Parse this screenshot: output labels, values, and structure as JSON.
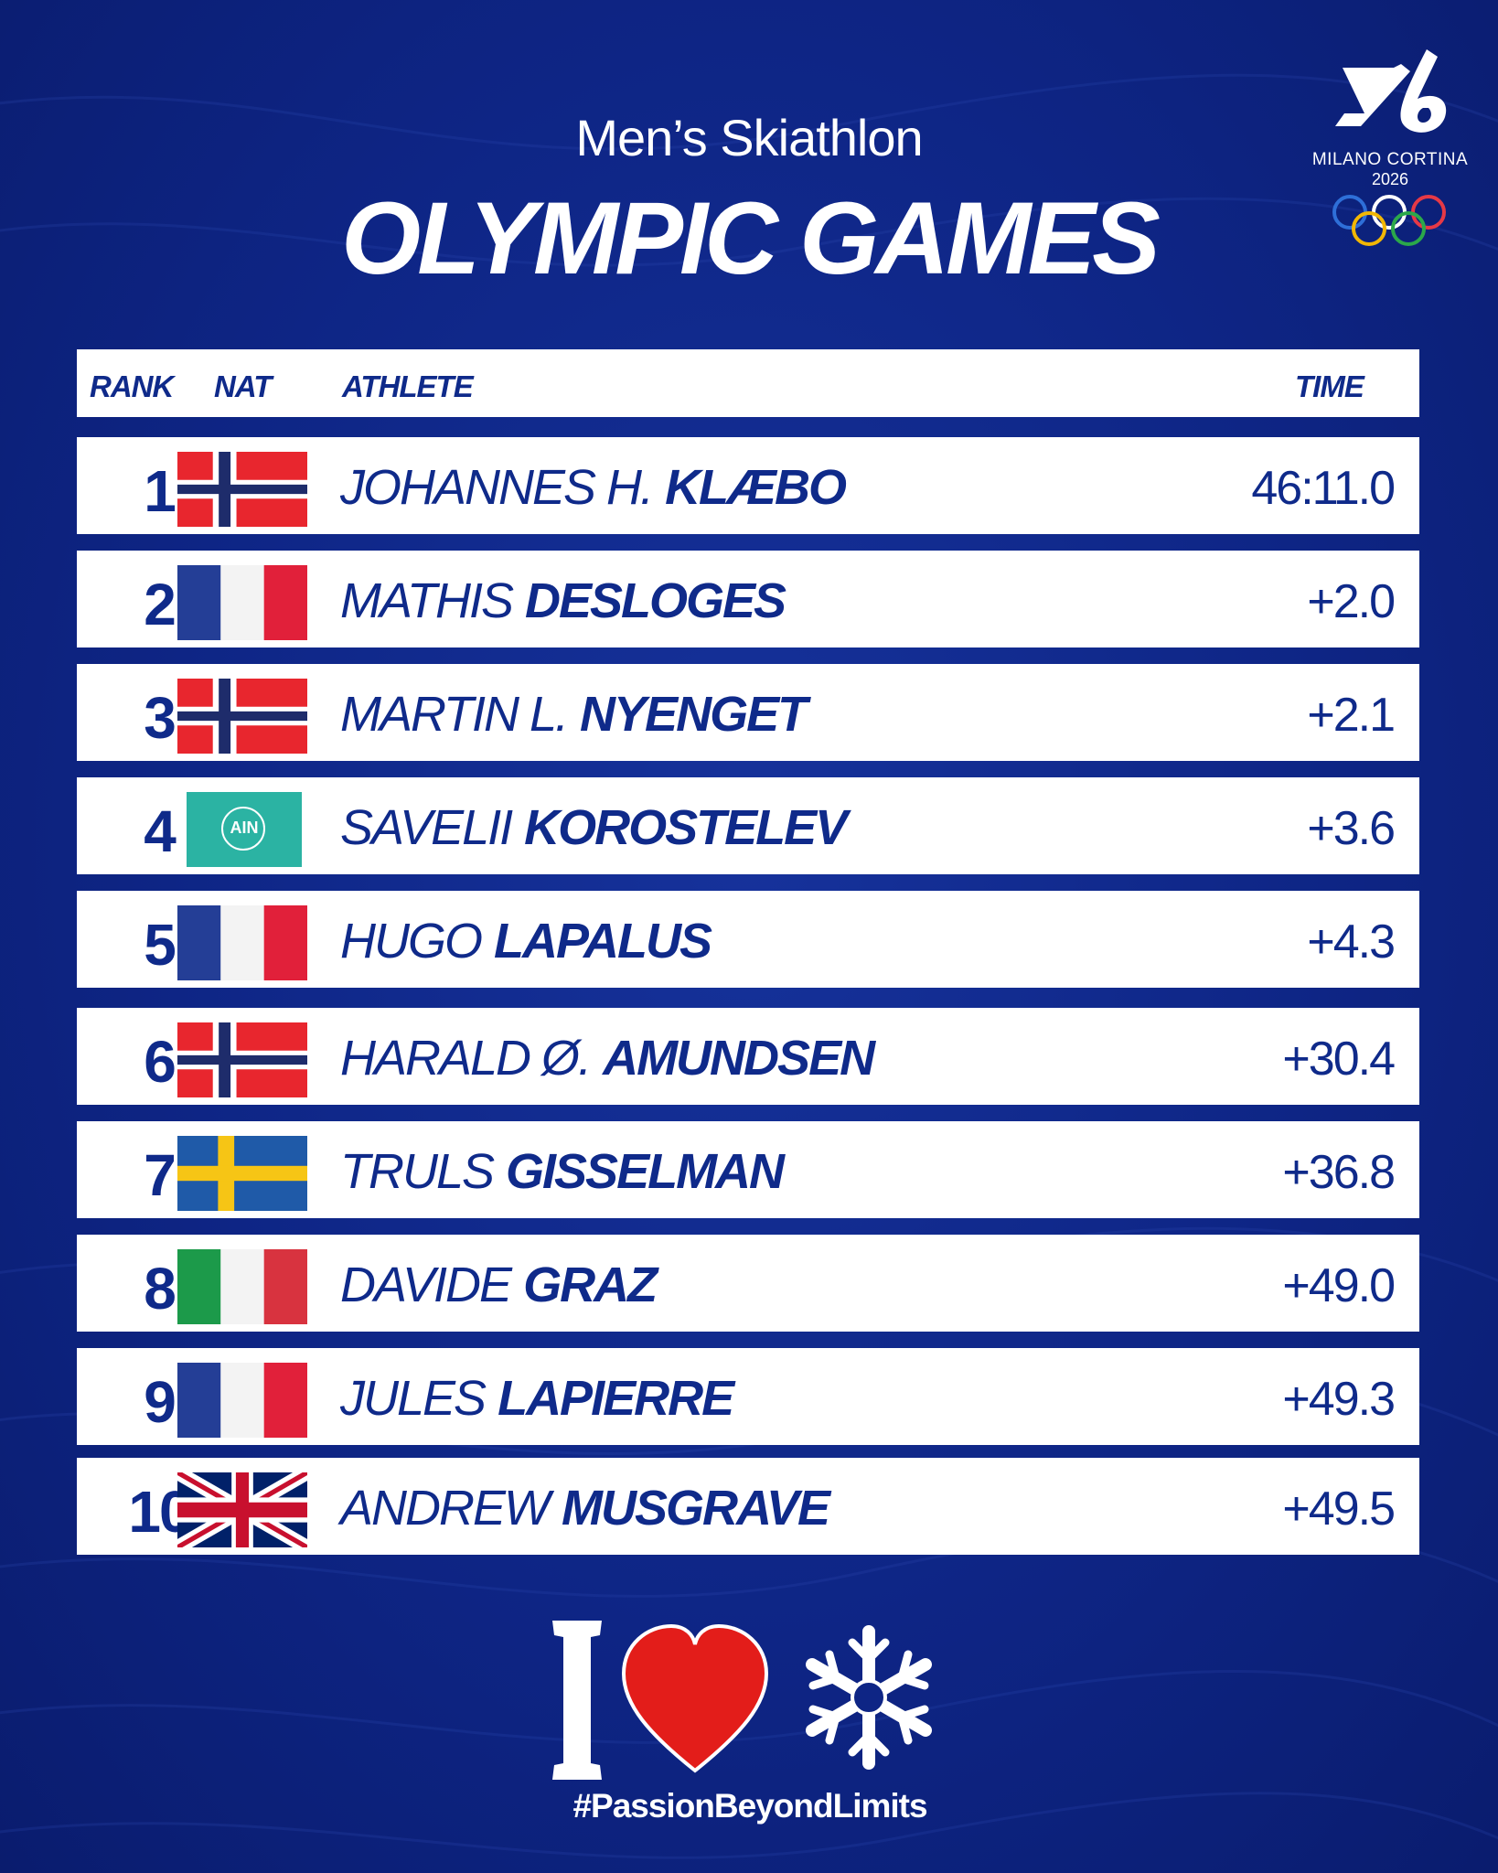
{
  "header": {
    "subtitle": "Men’s Skiathlon",
    "title": "OLYMPIC GAMES"
  },
  "logo": {
    "brand": "MILANO CORTINA",
    "year": "2026",
    "icon": "milano-cortina-2026-olympic-rings-logo"
  },
  "columns": {
    "rank": "RANK",
    "nat": "NAT",
    "athlete": "ATHLETE",
    "time": "TIME"
  },
  "results": [
    {
      "rank": "1",
      "nat": "norway",
      "first": "JOHANNES H.",
      "last": "KLÆBO",
      "time": "46:11.0"
    },
    {
      "rank": "2",
      "nat": "france",
      "first": "MATHIS",
      "last": "DESLOGES",
      "time": "+2.0"
    },
    {
      "rank": "3",
      "nat": "norway",
      "first": "MARTIN L.",
      "last": "NYENGET",
      "time": "+2.1"
    },
    {
      "rank": "4",
      "nat": "ain",
      "first": "SAVELII",
      "last": "KOROSTELEV",
      "time": "+3.6",
      "flag_text": "AIN"
    },
    {
      "rank": "5",
      "nat": "france",
      "first": "HUGO",
      "last": "LAPALUS",
      "time": "+4.3"
    },
    {
      "rank": "6",
      "nat": "norway",
      "first": "HARALD Ø.",
      "last": "AMUNDSEN",
      "time": "+30.4"
    },
    {
      "rank": "7",
      "nat": "sweden",
      "first": "TRULS",
      "last": "GISSELMAN",
      "time": "+36.8"
    },
    {
      "rank": "8",
      "nat": "italy",
      "first": "DAVIDE",
      "last": "GRAZ",
      "time": "+49.0"
    },
    {
      "rank": "9",
      "nat": "france",
      "first": "JULES",
      "last": "LAPIERRE",
      "time": "+49.3"
    },
    {
      "rank": "10",
      "nat": "great-britain",
      "first": "ANDREW",
      "last": "MUSGRAVE",
      "time": "+49.5"
    }
  ],
  "footer": {
    "letter": "I",
    "heart_icon": "heart-icon",
    "snowflake_icon": "fis-snowflake-icon",
    "hashtag": "#PassionBeyondLimits"
  },
  "colors": {
    "background": "#0e2585",
    "text_blue": "#0f2a8a",
    "heart_red": "#e31d1a"
  }
}
